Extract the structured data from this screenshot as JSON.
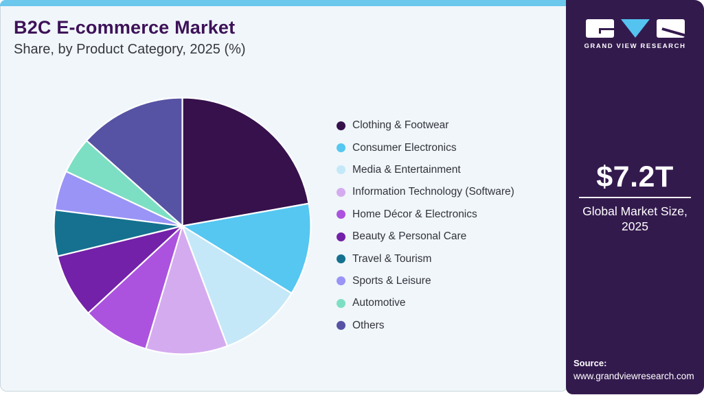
{
  "header": {
    "title": "B2C E-commerce Market",
    "subtitle": "Share, by Product Category, 2025 (%)"
  },
  "sidebar": {
    "logo_text": "GRAND VIEW RESEARCH",
    "stat_value": "$7.2T",
    "stat_label_line1": "Global Market Size,",
    "stat_label_line2": "2025",
    "source_label": "Source:",
    "source_url": "www.grandviewresearch.com"
  },
  "theme": {
    "accent_blue": "#55c3f0",
    "strip_blue": "#6cc7ec",
    "card_bg": "#f0f6fa",
    "card_border": "#ccd7de",
    "sidebar_bg": "#331a4d",
    "title_color": "#3d1158",
    "subtitle_color": "#36363e",
    "legend_text": "#33333c"
  },
  "chart_data": {
    "type": "pie",
    "title": "B2C E-commerce Market Share, by Product Category, 2025 (%)",
    "legend_position": "right",
    "start_angle_deg": 0,
    "direction": "clockwise",
    "categories": [
      "Clothing & Footwear",
      "Consumer Electronics",
      "Media & Entertainment",
      "Information Technology (Software)",
      "Home Décor & Electronics",
      "Beauty & Personal Care",
      "Travel & Tourism",
      "Sports & Leisure",
      "Automotive",
      "Others"
    ],
    "values": [
      22.2,
      11.6,
      10.5,
      10.3,
      8.5,
      8.1,
      5.8,
      5.0,
      4.6,
      13.4
    ],
    "colors": [
      "#36114c",
      "#55c7f1",
      "#c5e8f8",
      "#d5abf0",
      "#ab53de",
      "#7221a8",
      "#15718f",
      "#9a94f7",
      "#7cdfc3",
      "#5653a4"
    ]
  }
}
